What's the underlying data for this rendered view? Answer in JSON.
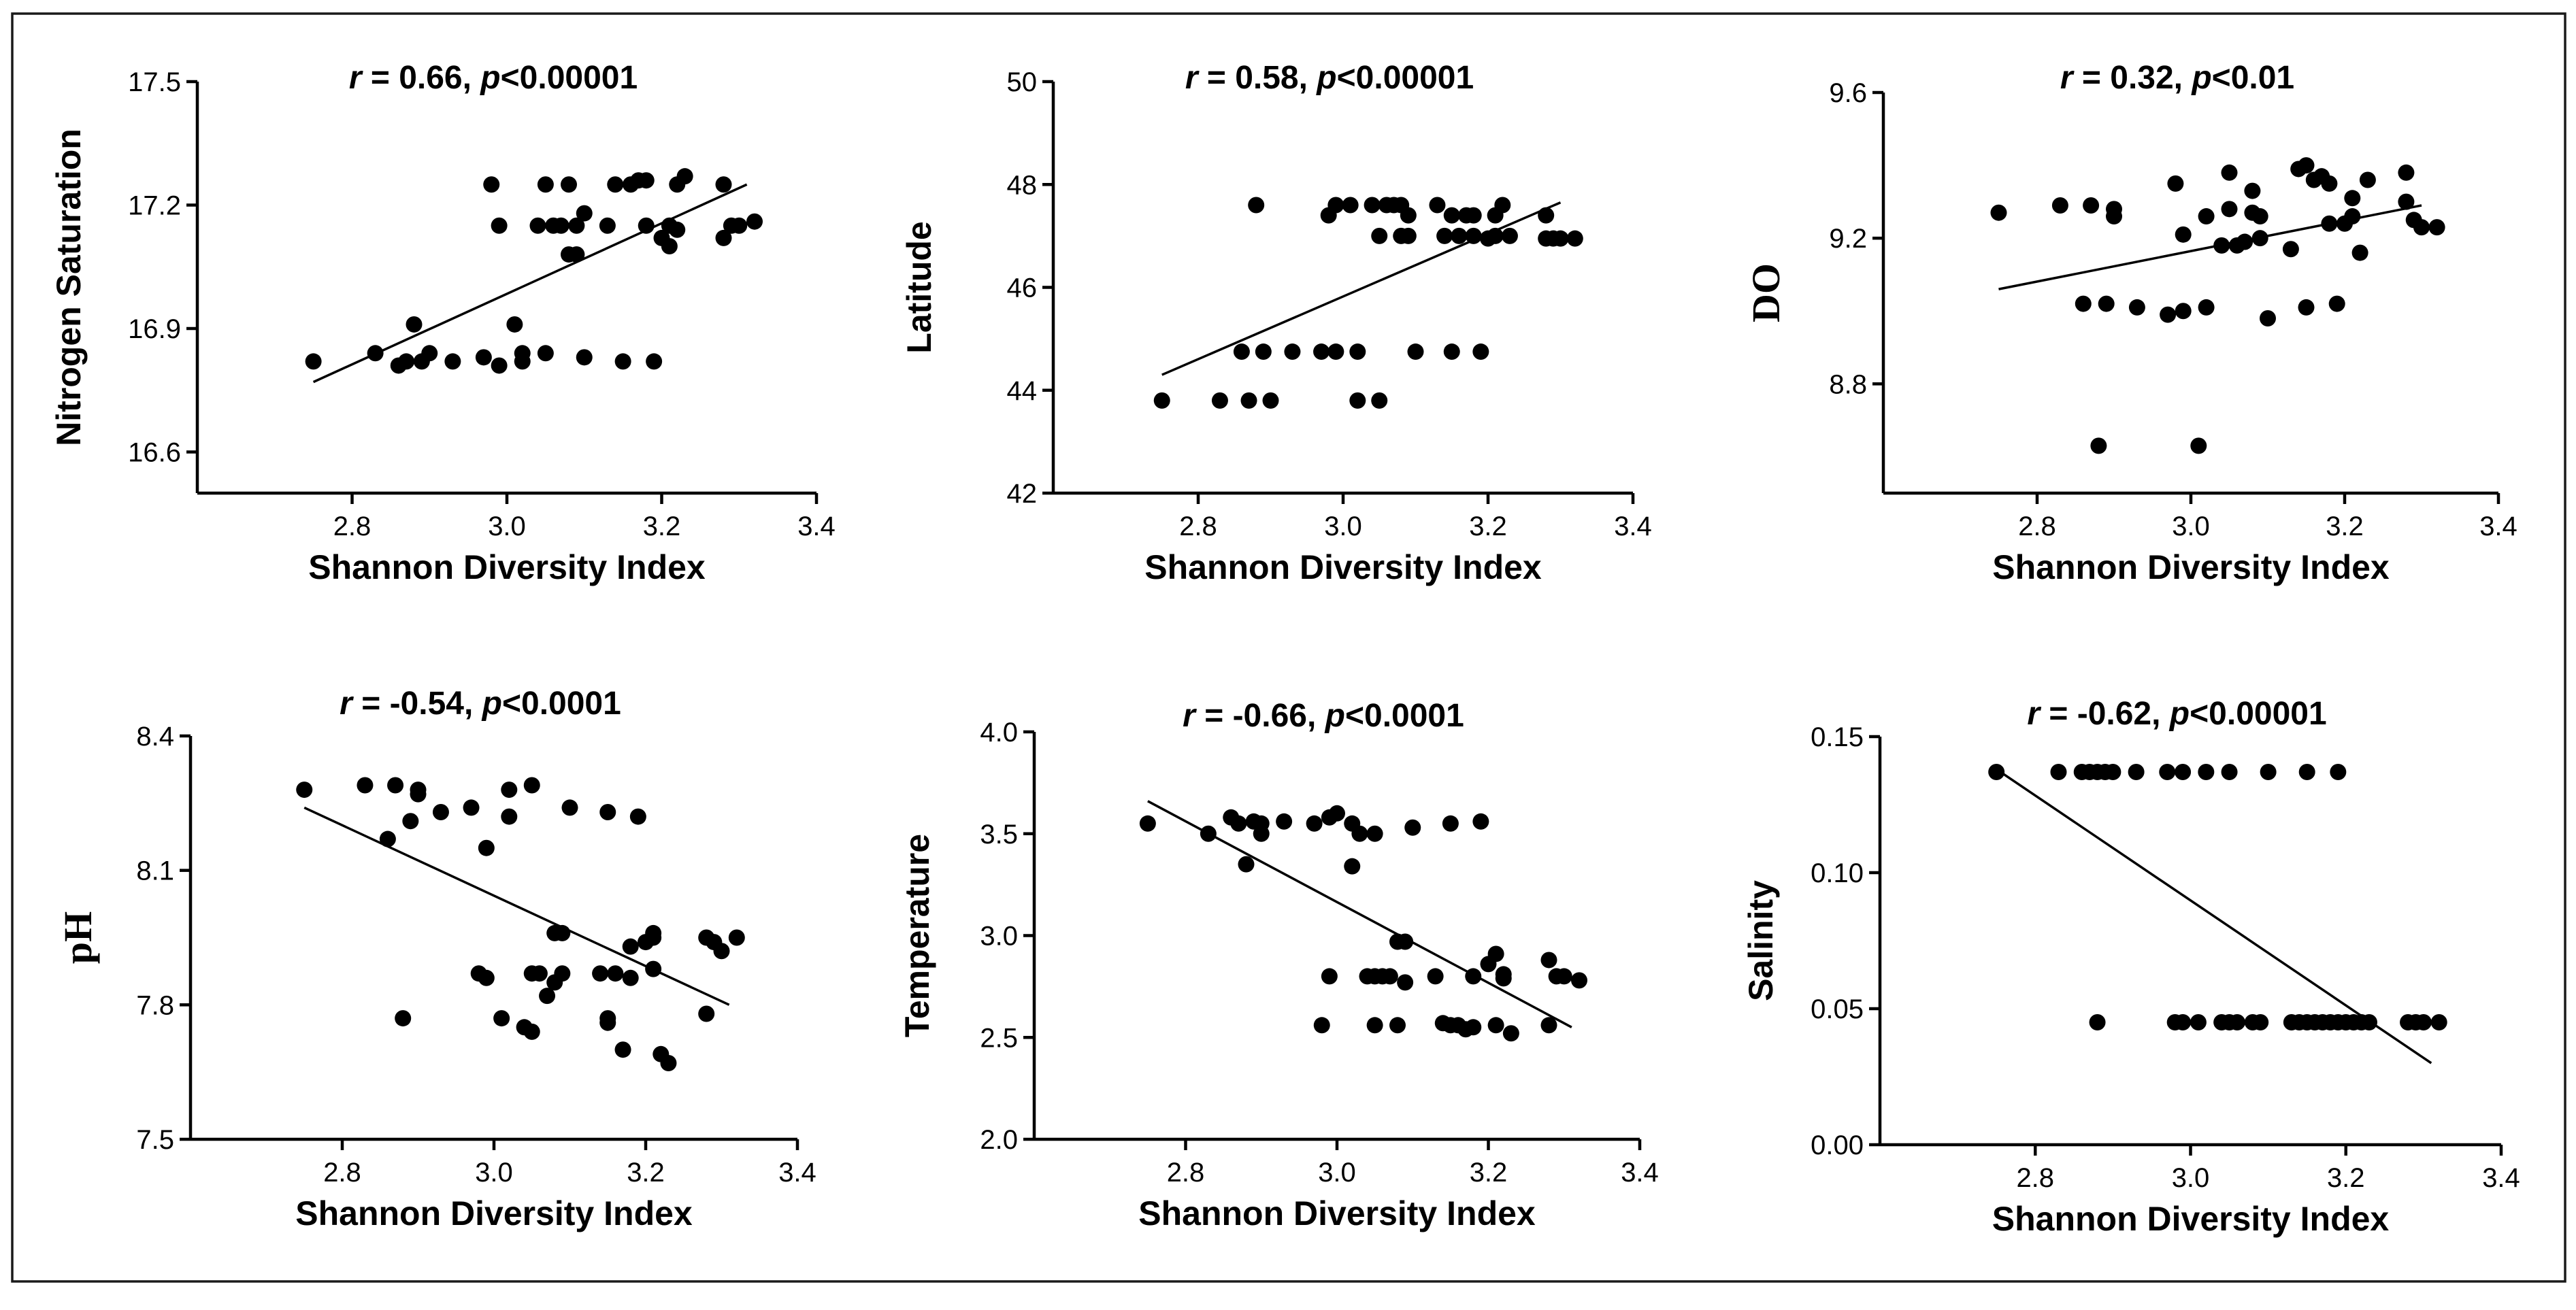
{
  "chart_data": [
    {
      "type": "scatter",
      "title_r": "0.66",
      "title_p": "0.00001",
      "xlabel": "Shannon Diversity Index",
      "ylabel": "Nitrogen Saturation",
      "xlim": [
        2.6,
        3.4
      ],
      "ylim": [
        16.5,
        17.5
      ],
      "xticks": [
        "2.8",
        "3.0",
        "3.2",
        "3.4"
      ],
      "yticks": [
        "16.6",
        "16.9",
        "17.2",
        "17.5"
      ],
      "fit": [
        [
          2.75,
          16.77
        ],
        [
          3.31,
          17.25
        ]
      ],
      "points": [
        [
          2.75,
          16.82
        ],
        [
          2.83,
          16.84
        ],
        [
          2.86,
          16.81
        ],
        [
          2.87,
          16.82
        ],
        [
          2.88,
          16.91
        ],
        [
          2.89,
          16.82
        ],
        [
          2.9,
          16.84
        ],
        [
          2.93,
          16.82
        ],
        [
          2.97,
          16.83
        ],
        [
          2.98,
          17.25
        ],
        [
          2.99,
          17.15
        ],
        [
          2.99,
          16.81
        ],
        [
          3.01,
          16.91
        ],
        [
          3.02,
          16.84
        ],
        [
          3.02,
          16.82
        ],
        [
          3.04,
          17.15
        ],
        [
          3.05,
          17.25
        ],
        [
          3.05,
          16.84
        ],
        [
          3.06,
          17.15
        ],
        [
          3.07,
          17.15
        ],
        [
          3.08,
          17.25
        ],
        [
          3.08,
          17.08
        ],
        [
          3.09,
          17.15
        ],
        [
          3.09,
          17.08
        ],
        [
          3.1,
          17.18
        ],
        [
          3.1,
          16.83
        ],
        [
          3.13,
          17.15
        ],
        [
          3.14,
          17.25
        ],
        [
          3.15,
          16.82
        ],
        [
          3.16,
          17.25
        ],
        [
          3.17,
          17.26
        ],
        [
          3.18,
          17.26
        ],
        [
          3.18,
          17.15
        ],
        [
          3.19,
          16.82
        ],
        [
          3.2,
          17.12
        ],
        [
          3.21,
          17.15
        ],
        [
          3.21,
          17.1
        ],
        [
          3.22,
          17.25
        ],
        [
          3.22,
          17.14
        ],
        [
          3.23,
          17.27
        ],
        [
          3.28,
          17.25
        ],
        [
          3.28,
          17.12
        ],
        [
          3.29,
          17.15
        ],
        [
          3.3,
          17.15
        ],
        [
          3.32,
          17.16
        ]
      ]
    },
    {
      "type": "scatter",
      "title_r": "0.58",
      "title_p": "0.00001",
      "xlabel": "Shannon Diversity Index",
      "ylabel": "Latitude",
      "xlim": [
        2.6,
        3.4
      ],
      "ylim": [
        42,
        50
      ],
      "xticks": [
        "2.8",
        "3.0",
        "3.2",
        "3.4"
      ],
      "yticks": [
        "42",
        "44",
        "46",
        "48",
        "50"
      ],
      "fit": [
        [
          2.75,
          44.3
        ],
        [
          3.3,
          47.65
        ]
      ],
      "points": [
        [
          2.75,
          43.8
        ],
        [
          2.83,
          43.8
        ],
        [
          2.86,
          44.75
        ],
        [
          2.87,
          43.8
        ],
        [
          2.88,
          47.6
        ],
        [
          2.89,
          44.75
        ],
        [
          2.9,
          43.8
        ],
        [
          2.93,
          44.75
        ],
        [
          2.97,
          44.75
        ],
        [
          2.98,
          47.4
        ],
        [
          2.99,
          44.75
        ],
        [
          2.99,
          47.6
        ],
        [
          3.01,
          47.6
        ],
        [
          3.02,
          44.75
        ],
        [
          3.02,
          43.8
        ],
        [
          3.04,
          47.6
        ],
        [
          3.05,
          47.0
        ],
        [
          3.05,
          43.8
        ],
        [
          3.06,
          47.6
        ],
        [
          3.07,
          47.6
        ],
        [
          3.08,
          47.6
        ],
        [
          3.08,
          47.0
        ],
        [
          3.09,
          47.4
        ],
        [
          3.09,
          47.0
        ],
        [
          3.1,
          44.75
        ],
        [
          3.13,
          47.6
        ],
        [
          3.14,
          47.0
        ],
        [
          3.15,
          47.4
        ],
        [
          3.15,
          44.75
        ],
        [
          3.16,
          47.0
        ],
        [
          3.17,
          47.4
        ],
        [
          3.18,
          47.0
        ],
        [
          3.18,
          47.4
        ],
        [
          3.19,
          44.75
        ],
        [
          3.2,
          46.95
        ],
        [
          3.21,
          47.0
        ],
        [
          3.21,
          47.4
        ],
        [
          3.22,
          47.6
        ],
        [
          3.23,
          47.0
        ],
        [
          3.28,
          47.4
        ],
        [
          3.28,
          46.95
        ],
        [
          3.29,
          46.95
        ],
        [
          3.3,
          46.95
        ],
        [
          3.32,
          46.95
        ]
      ]
    },
    {
      "type": "scatter",
      "title_r": "0.32",
      "title_p": "0.01",
      "xlabel": "Shannon Diversity Index",
      "ylabel": "DO",
      "xlim": [
        2.6,
        3.4
      ],
      "ylim": [
        8.5,
        9.6
      ],
      "xticks": [
        "2.8",
        "3.0",
        "3.2",
        "3.4"
      ],
      "yticks": [
        "8.8",
        "9.2",
        "9.6"
      ],
      "fit": [
        [
          2.75,
          9.06
        ],
        [
          3.3,
          9.29
        ]
      ],
      "points": [
        [
          2.75,
          9.27
        ],
        [
          2.83,
          9.29
        ],
        [
          2.86,
          9.02
        ],
        [
          2.87,
          9.29
        ],
        [
          2.88,
          8.63
        ],
        [
          2.89,
          9.02
        ],
        [
          2.9,
          9.28
        ],
        [
          2.9,
          9.26
        ],
        [
          2.93,
          9.01
        ],
        [
          2.97,
          8.99
        ],
        [
          2.98,
          9.35
        ],
        [
          2.99,
          9.21
        ],
        [
          2.99,
          9.0
        ],
        [
          3.01,
          8.63
        ],
        [
          3.02,
          9.01
        ],
        [
          3.02,
          9.26
        ],
        [
          3.04,
          9.18
        ],
        [
          3.05,
          9.38
        ],
        [
          3.05,
          9.28
        ],
        [
          3.06,
          9.18
        ],
        [
          3.07,
          9.19
        ],
        [
          3.08,
          9.33
        ],
        [
          3.08,
          9.27
        ],
        [
          3.09,
          9.2
        ],
        [
          3.09,
          9.26
        ],
        [
          3.1,
          8.98
        ],
        [
          3.13,
          9.17
        ],
        [
          3.14,
          9.39
        ],
        [
          3.15,
          9.4
        ],
        [
          3.15,
          9.01
        ],
        [
          3.16,
          9.36
        ],
        [
          3.17,
          9.37
        ],
        [
          3.18,
          9.35
        ],
        [
          3.18,
          9.24
        ],
        [
          3.19,
          9.02
        ],
        [
          3.2,
          9.24
        ],
        [
          3.21,
          9.26
        ],
        [
          3.21,
          9.31
        ],
        [
          3.22,
          9.16
        ],
        [
          3.23,
          9.36
        ],
        [
          3.28,
          9.38
        ],
        [
          3.28,
          9.3
        ],
        [
          3.29,
          9.25
        ],
        [
          3.3,
          9.23
        ],
        [
          3.32,
          9.23
        ]
      ]
    },
    {
      "type": "scatter",
      "title_r": "-0.54",
      "title_p": "0.0001",
      "xlabel": "Shannon Diversity Index",
      "ylabel": "pH",
      "xlim": [
        2.6,
        3.4
      ],
      "ylim": [
        7.5,
        8.4
      ],
      "xticks": [
        "2.8",
        "3.0",
        "3.2",
        "3.4"
      ],
      "yticks": [
        "7.5",
        "7.8",
        "8.1",
        "8.4"
      ],
      "fit": [
        [
          2.75,
          8.24
        ],
        [
          3.31,
          7.8
        ]
      ],
      "points": [
        [
          2.75,
          8.28
        ],
        [
          2.83,
          8.29
        ],
        [
          2.86,
          8.17
        ],
        [
          2.87,
          8.29
        ],
        [
          2.88,
          7.77
        ],
        [
          2.89,
          8.21
        ],
        [
          2.9,
          8.27
        ],
        [
          2.9,
          8.28
        ],
        [
          2.93,
          8.23
        ],
        [
          2.97,
          8.24
        ],
        [
          2.98,
          7.87
        ],
        [
          2.99,
          7.86
        ],
        [
          2.99,
          8.15
        ],
        [
          3.01,
          7.77
        ],
        [
          3.02,
          8.22
        ],
        [
          3.02,
          8.28
        ],
        [
          3.04,
          7.75
        ],
        [
          3.05,
          7.74
        ],
        [
          3.05,
          7.87
        ],
        [
          3.05,
          8.29
        ],
        [
          3.06,
          7.87
        ],
        [
          3.07,
          7.82
        ],
        [
          3.08,
          7.85
        ],
        [
          3.08,
          7.96
        ],
        [
          3.09,
          7.96
        ],
        [
          3.09,
          7.87
        ],
        [
          3.1,
          8.24
        ],
        [
          3.14,
          7.87
        ],
        [
          3.15,
          7.77
        ],
        [
          3.15,
          7.76
        ],
        [
          3.15,
          8.23
        ],
        [
          3.16,
          7.87
        ],
        [
          3.17,
          7.7
        ],
        [
          3.18,
          7.93
        ],
        [
          3.18,
          7.86
        ],
        [
          3.19,
          8.22
        ],
        [
          3.2,
          7.94
        ],
        [
          3.21,
          7.95
        ],
        [
          3.21,
          7.96
        ],
        [
          3.21,
          7.88
        ],
        [
          3.22,
          7.69
        ],
        [
          3.23,
          7.67
        ],
        [
          3.28,
          7.78
        ],
        [
          3.28,
          7.95
        ],
        [
          3.29,
          7.94
        ],
        [
          3.3,
          7.92
        ],
        [
          3.32,
          7.95
        ]
      ]
    },
    {
      "type": "scatter",
      "title_r": "-0.66",
      "title_p": "0.0001",
      "xlabel": "Shannon Diversity Index",
      "ylabel": "Temperature",
      "xlim": [
        2.6,
        3.4
      ],
      "ylim": [
        2.0,
        4.0
      ],
      "xticks": [
        "2.8",
        "3.0",
        "3.2",
        "3.4"
      ],
      "yticks": [
        "2.0",
        "2.5",
        "3.0",
        "3.5",
        "4.0"
      ],
      "fit": [
        [
          2.75,
          3.66
        ],
        [
          3.31,
          2.55
        ]
      ],
      "points": [
        [
          2.75,
          3.55
        ],
        [
          2.83,
          3.5
        ],
        [
          2.86,
          3.58
        ],
        [
          2.87,
          3.55
        ],
        [
          2.88,
          3.35
        ],
        [
          2.89,
          3.56
        ],
        [
          2.9,
          3.5
        ],
        [
          2.9,
          3.55
        ],
        [
          2.93,
          3.56
        ],
        [
          2.97,
          3.55
        ],
        [
          2.98,
          2.56
        ],
        [
          2.99,
          2.8
        ],
        [
          2.99,
          3.58
        ],
        [
          3.0,
          3.6
        ],
        [
          3.02,
          3.34
        ],
        [
          3.02,
          3.55
        ],
        [
          3.03,
          3.5
        ],
        [
          3.04,
          2.8
        ],
        [
          3.05,
          2.8
        ],
        [
          3.05,
          2.56
        ],
        [
          3.05,
          3.5
        ],
        [
          3.06,
          2.8
        ],
        [
          3.07,
          2.8
        ],
        [
          3.08,
          2.56
        ],
        [
          3.08,
          2.97
        ],
        [
          3.09,
          2.97
        ],
        [
          3.09,
          2.77
        ],
        [
          3.1,
          3.53
        ],
        [
          3.13,
          2.8
        ],
        [
          3.14,
          2.57
        ],
        [
          3.15,
          2.56
        ],
        [
          3.15,
          3.55
        ],
        [
          3.16,
          2.56
        ],
        [
          3.17,
          2.54
        ],
        [
          3.18,
          2.8
        ],
        [
          3.18,
          2.55
        ],
        [
          3.19,
          3.56
        ],
        [
          3.2,
          2.86
        ],
        [
          3.21,
          2.91
        ],
        [
          3.21,
          2.56
        ],
        [
          3.22,
          2.79
        ],
        [
          3.22,
          2.81
        ],
        [
          3.23,
          2.52
        ],
        [
          3.28,
          2.88
        ],
        [
          3.28,
          2.56
        ],
        [
          3.29,
          2.8
        ],
        [
          3.3,
          2.8
        ],
        [
          3.32,
          2.78
        ]
      ]
    },
    {
      "type": "scatter",
      "title_r": "-0.62",
      "title_p": "0.00001",
      "xlabel": "Shannon Diversity Index",
      "ylabel": "Salinity",
      "xlim": [
        2.6,
        3.4
      ],
      "ylim": [
        0.0,
        0.15
      ],
      "xticks": [
        "2.8",
        "3.0",
        "3.2",
        "3.4"
      ],
      "yticks": [
        "0.00",
        "0.05",
        "0.10",
        "0.15"
      ],
      "fit": [
        [
          2.75,
          0.138
        ],
        [
          3.31,
          0.03
        ]
      ],
      "points": [
        [
          2.75,
          0.137
        ],
        [
          2.83,
          0.137
        ],
        [
          2.86,
          0.137
        ],
        [
          2.87,
          0.137
        ],
        [
          2.88,
          0.137
        ],
        [
          2.88,
          0.045
        ],
        [
          2.89,
          0.137
        ],
        [
          2.9,
          0.137
        ],
        [
          2.93,
          0.137
        ],
        [
          2.97,
          0.137
        ],
        [
          2.98,
          0.045
        ],
        [
          2.99,
          0.137
        ],
        [
          2.99,
          0.045
        ],
        [
          3.01,
          0.045
        ],
        [
          3.02,
          0.137
        ],
        [
          3.04,
          0.045
        ],
        [
          3.05,
          0.045
        ],
        [
          3.05,
          0.137
        ],
        [
          3.06,
          0.045
        ],
        [
          3.08,
          0.045
        ],
        [
          3.09,
          0.045
        ],
        [
          3.1,
          0.137
        ],
        [
          3.13,
          0.045
        ],
        [
          3.14,
          0.045
        ],
        [
          3.15,
          0.045
        ],
        [
          3.15,
          0.137
        ],
        [
          3.16,
          0.045
        ],
        [
          3.17,
          0.045
        ],
        [
          3.18,
          0.045
        ],
        [
          3.19,
          0.137
        ],
        [
          3.19,
          0.045
        ],
        [
          3.2,
          0.045
        ],
        [
          3.21,
          0.045
        ],
        [
          3.22,
          0.045
        ],
        [
          3.23,
          0.045
        ],
        [
          3.28,
          0.045
        ],
        [
          3.29,
          0.045
        ],
        [
          3.3,
          0.045
        ],
        [
          3.32,
          0.045
        ]
      ]
    }
  ]
}
